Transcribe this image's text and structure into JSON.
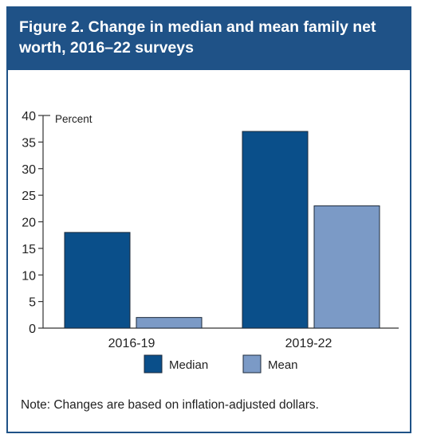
{
  "header": {
    "title": "Figure 2. Change in median and mean family net worth, 2016–22 surveys"
  },
  "note": "Note: Changes are based on inflation-adjusted dollars.",
  "colors": {
    "header_bg": "#1f5287",
    "median": "#0a4f8a",
    "mean": "#7b9ac6"
  },
  "chart_data": {
    "type": "bar",
    "title": "Figure 2. Change in median and mean family net worth, 2016–22 surveys",
    "ylabel": "Percent",
    "xlabel": "",
    "categories": [
      "2016-19",
      "2019-22"
    ],
    "series": [
      {
        "name": "Median",
        "values": [
          18,
          37
        ]
      },
      {
        "name": "Mean",
        "values": [
          2,
          23
        ]
      }
    ],
    "ylim": [
      0,
      40
    ],
    "yticks": [
      0,
      5,
      10,
      15,
      20,
      25,
      30,
      35,
      40
    ],
    "grid": false,
    "legend_position": "bottom"
  }
}
